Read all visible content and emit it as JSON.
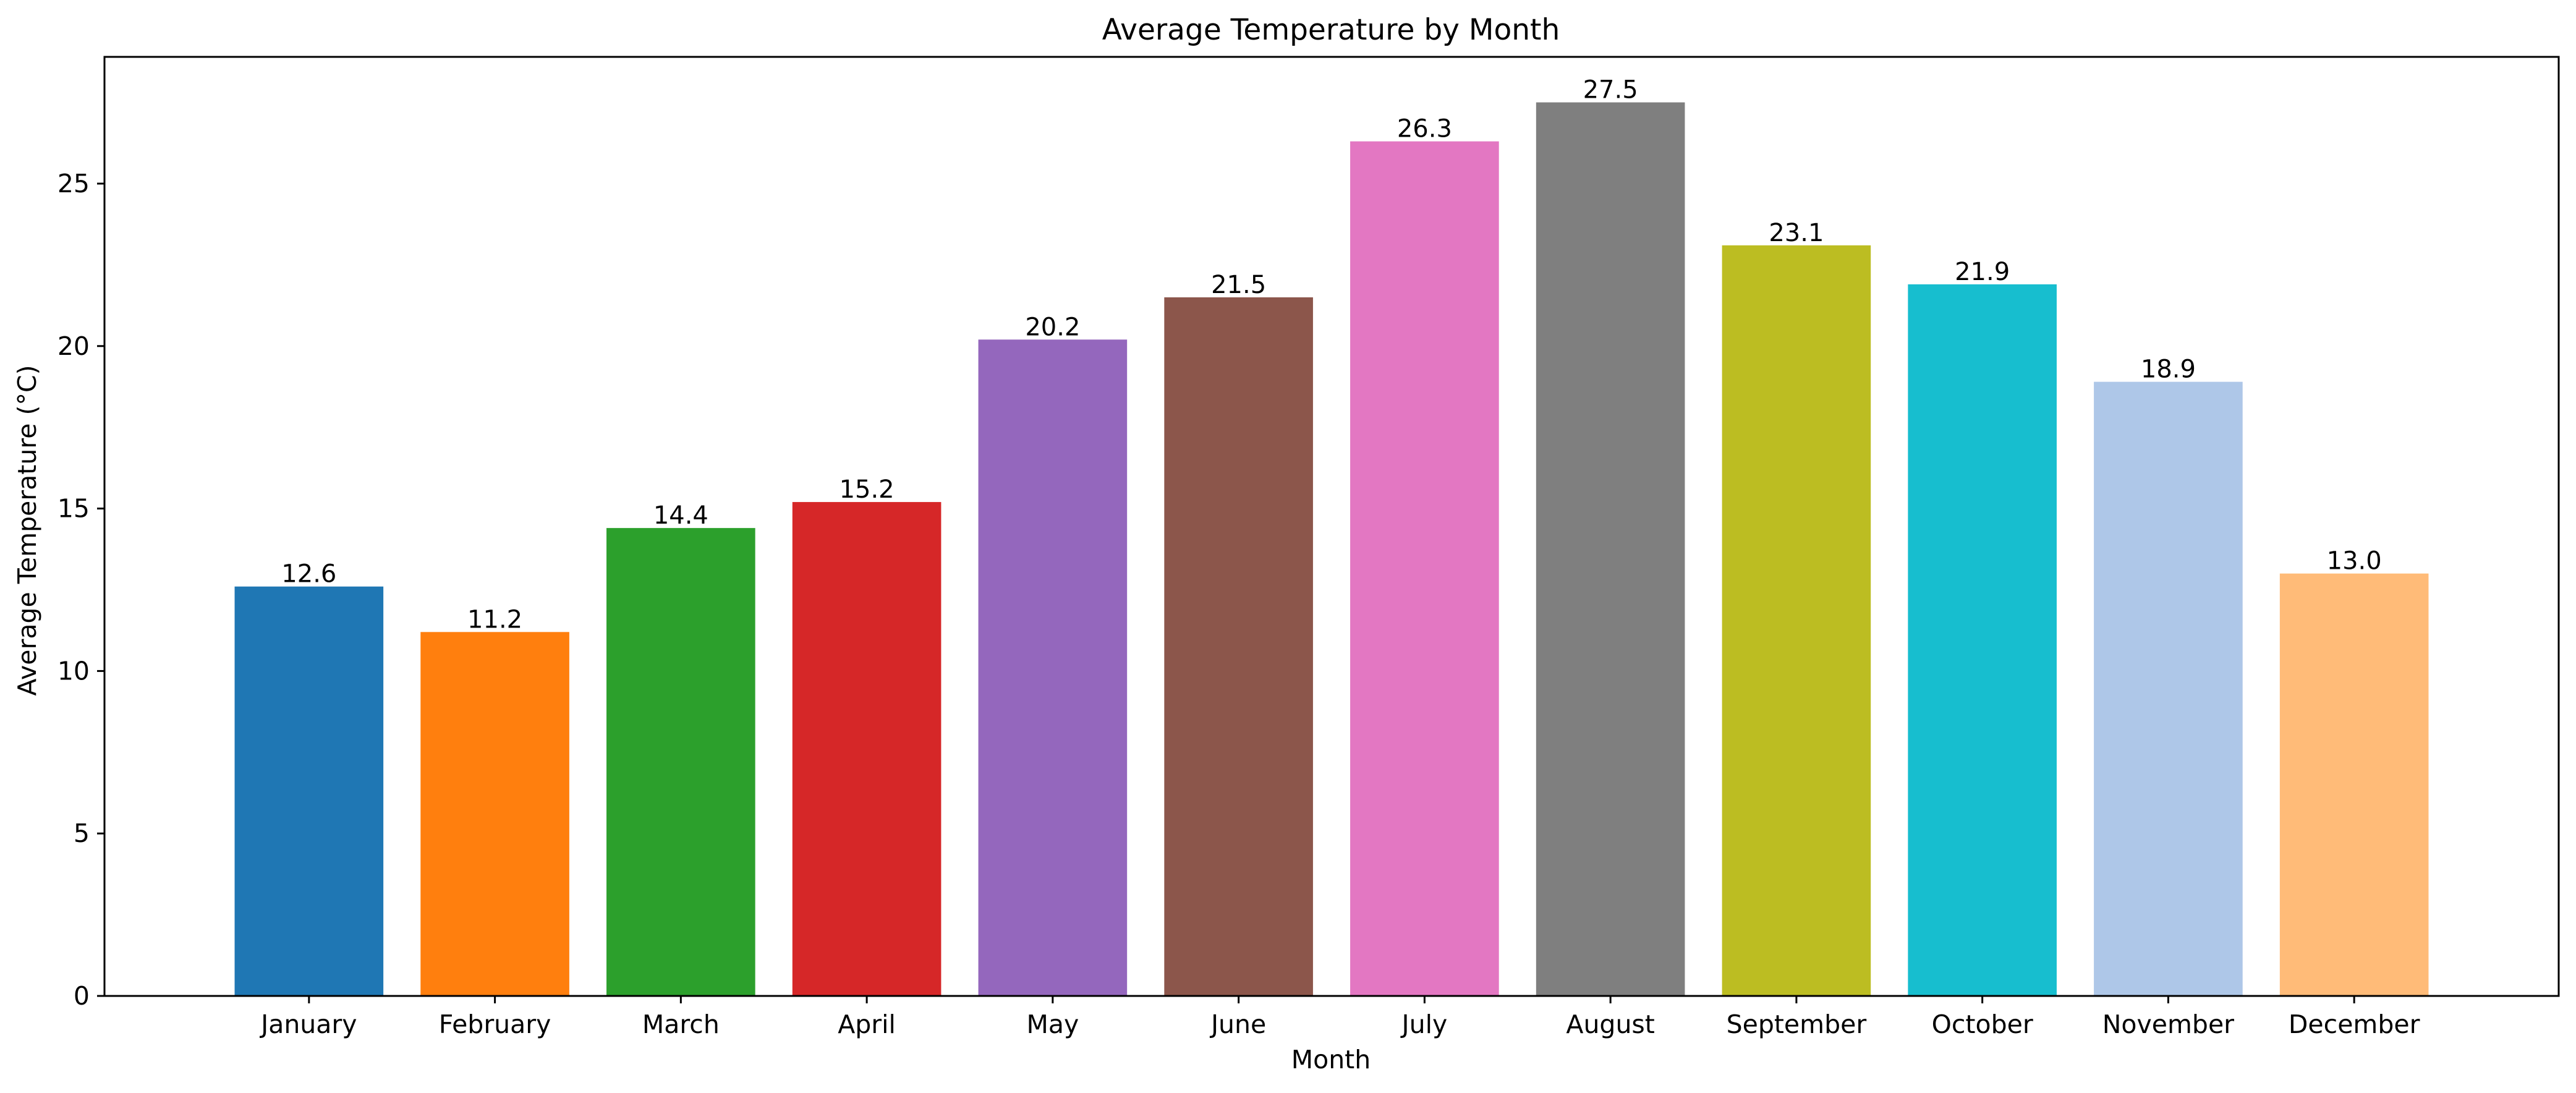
{
  "chart_data": {
    "type": "bar",
    "title": "Average Temperature by Month",
    "xlabel": "Month",
    "ylabel": "Average Temperature (°C)",
    "categories": [
      "January",
      "February",
      "March",
      "April",
      "May",
      "June",
      "July",
      "August",
      "September",
      "October",
      "November",
      "December"
    ],
    "values": [
      12.6,
      11.2,
      14.4,
      15.2,
      20.2,
      21.5,
      26.3,
      27.5,
      23.1,
      21.9,
      18.9,
      13.0
    ],
    "value_labels": [
      "12.6",
      "11.2",
      "14.4",
      "15.2",
      "20.2",
      "21.5",
      "26.3",
      "27.5",
      "23.1",
      "21.9",
      "18.9",
      "13.0"
    ],
    "colors": [
      "#1f77b4",
      "#ff7f0e",
      "#2ca02c",
      "#d62728",
      "#9467bd",
      "#8c564b",
      "#e377c2",
      "#7f7f7f",
      "#bcbd22",
      "#17becf",
      "#aec7e8",
      "#ffbb78"
    ],
    "ylim": [
      0,
      28.9
    ],
    "yticks": [
      0,
      5,
      10,
      15,
      20,
      25
    ],
    "grid": false,
    "legend": "none"
  }
}
